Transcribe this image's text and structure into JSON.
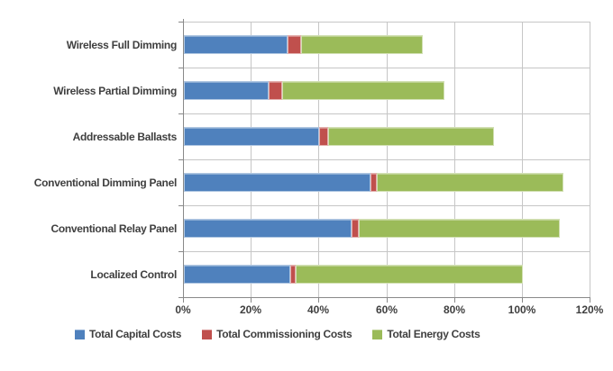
{
  "chart_data": {
    "type": "bar",
    "orientation": "horizontal",
    "stacked": true,
    "title": "",
    "xlabel": "",
    "ylabel": "",
    "categories": [
      "Wireless Full Dimming",
      "Wireless Partial Dimming",
      "Addressable Ballasts",
      "Conventional Dimming Panel",
      "Conventional Relay Panel",
      "Localized Control"
    ],
    "series": [
      {
        "name": "Total Capital Costs",
        "color": "#4F81BD",
        "values": [
          30.5,
          25,
          40,
          55,
          49.5,
          31.5
        ]
      },
      {
        "name": "Total Commissioning Costs",
        "color": "#C0504D",
        "values": [
          4,
          4,
          2.5,
          2,
          2,
          1.5
        ]
      },
      {
        "name": "Total Energy Costs",
        "color": "#9BBB59",
        "values": [
          36,
          48,
          49,
          55,
          59.5,
          67
        ]
      }
    ],
    "x_ticks": [
      "0%",
      "20%",
      "40%",
      "60%",
      "80%",
      "100%",
      "120%"
    ],
    "xlim": [
      0,
      120
    ],
    "tick_step": 20,
    "grid": true,
    "legend_position": "bottom",
    "style": {
      "background_color": "#FFFFFF",
      "grid_color": "#C6C6C6",
      "axis_color": "#898989",
      "text_color": "#3F3F3F"
    }
  }
}
